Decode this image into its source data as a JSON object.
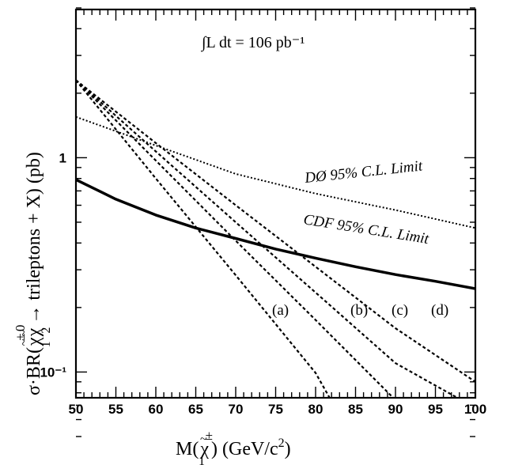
{
  "chart_data": {
    "type": "line",
    "title": "",
    "xlabel": "M(χ̃₁±) (GeV/c²)",
    "ylabel": "σ·BR(χ̃₁±χ̃₂⁰→ trileptons + X) (pb)",
    "annotation": "∫L dt = 106 pb⁻¹",
    "xlim": [
      50,
      100
    ],
    "ylim": [
      0.05,
      5
    ],
    "yscale": "log",
    "x_ticks": [
      "50",
      "55",
      "60",
      "65",
      "70",
      "75",
      "80",
      "85",
      "90",
      "95",
      "100"
    ],
    "y_ticks": [
      {
        "value": 1,
        "label": "1"
      },
      {
        "value": 0.1,
        "label": "10⁻¹"
      }
    ],
    "grid": false,
    "series": [
      {
        "name": "DØ 95% C.L. Limit",
        "style": "dotted",
        "x": [
          50,
          60,
          70,
          80,
          90,
          100
        ],
        "y": [
          1.55,
          1.14,
          0.84,
          0.68,
          0.57,
          0.47
        ]
      },
      {
        "name": "CDF 95% C.L. Limit",
        "style": "solid-thick",
        "x": [
          50,
          55,
          60,
          65,
          70,
          75,
          80,
          85,
          90,
          95,
          100
        ],
        "y": [
          0.79,
          0.64,
          0.54,
          0.47,
          0.42,
          0.375,
          0.34,
          0.31,
          0.285,
          0.265,
          0.245
        ]
      },
      {
        "name": "(a)",
        "style": "dashed",
        "x": [
          50,
          60,
          70,
          80,
          84.5
        ],
        "y": [
          2.3,
          0.8,
          0.283,
          0.099,
          0.05
        ]
      },
      {
        "name": "(b)",
        "style": "dashed",
        "x": [
          50,
          60,
          70,
          80,
          90,
          100
        ],
        "y": [
          2.3,
          0.97,
          0.41,
          0.175,
          0.074,
          0.045
        ]
      },
      {
        "name": "(c)",
        "style": "dashed",
        "x": [
          50,
          60,
          70,
          80,
          90,
          100
        ],
        "y": [
          2.3,
          1.07,
          0.5,
          0.235,
          0.11,
          0.068
        ]
      },
      {
        "name": "(d)",
        "style": "dashed",
        "x": [
          50,
          60,
          70,
          80,
          90,
          100
        ],
        "y": [
          2.3,
          1.17,
          0.6,
          0.31,
          0.16,
          0.09
        ]
      }
    ],
    "labels": {
      "d0": "DØ 95% C.L. Limit",
      "cdf": "CDF 95% C.L. Limit",
      "a": "(a)",
      "b": "(b)",
      "c": "(c)",
      "d": "(d)"
    },
    "colors": {
      "line": "#000000",
      "background": "#ffffff"
    }
  }
}
